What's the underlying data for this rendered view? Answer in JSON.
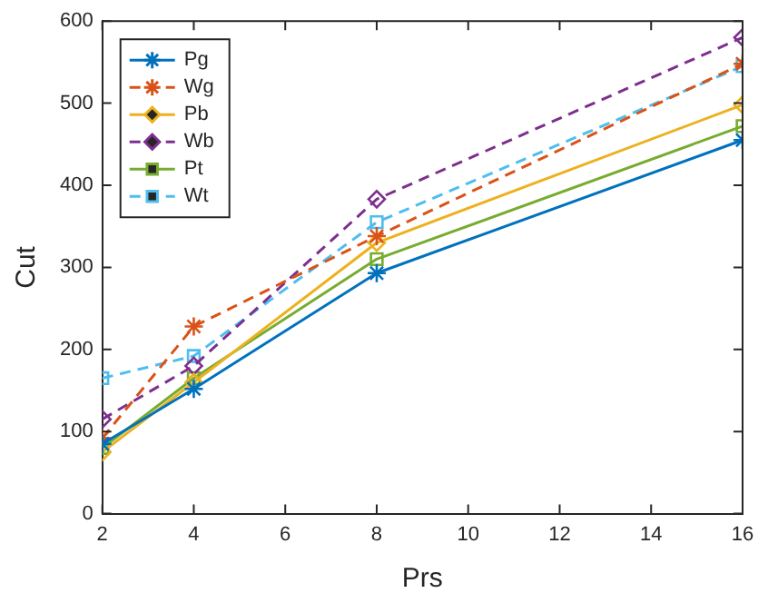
{
  "chart_data": {
    "type": "line",
    "xlabel": "Prs",
    "ylabel": "Cut",
    "x": [
      2,
      4,
      8,
      16
    ],
    "xlim": [
      2,
      16
    ],
    "xticks": [
      2,
      4,
      6,
      8,
      10,
      12,
      14,
      16
    ],
    "ylim": [
      0,
      600
    ],
    "yticks": [
      0,
      100,
      200,
      300,
      400,
      500,
      600
    ],
    "grid": false,
    "legend": "top left",
    "series": [
      {
        "name": "Pg",
        "color": "#0072bd",
        "values": [
          85,
          152,
          293,
          455
        ],
        "marker": "cross",
        "line_style": "solid"
      },
      {
        "name": "Wg",
        "color": "#d95319",
        "values": [
          92,
          228,
          338,
          548
        ],
        "marker": "cross",
        "line_style": "dashed"
      },
      {
        "name": "Pb",
        "color": "#edb120",
        "values": [
          75,
          160,
          330,
          498
        ],
        "marker": "diamond",
        "line_style": "solid"
      },
      {
        "name": "Wb",
        "color": "#7e2f8e",
        "values": [
          115,
          180,
          383,
          580
        ],
        "marker": "diamond",
        "line_style": "dashed"
      },
      {
        "name": "Pt",
        "color": "#77ac30",
        "values": [
          80,
          165,
          310,
          472
        ],
        "marker": "square",
        "line_style": "solid"
      },
      {
        "name": "Wt",
        "color": "#4dbeee",
        "values": [
          165,
          192,
          355,
          545
        ],
        "marker": "square",
        "line_style": "dashed"
      }
    ]
  }
}
